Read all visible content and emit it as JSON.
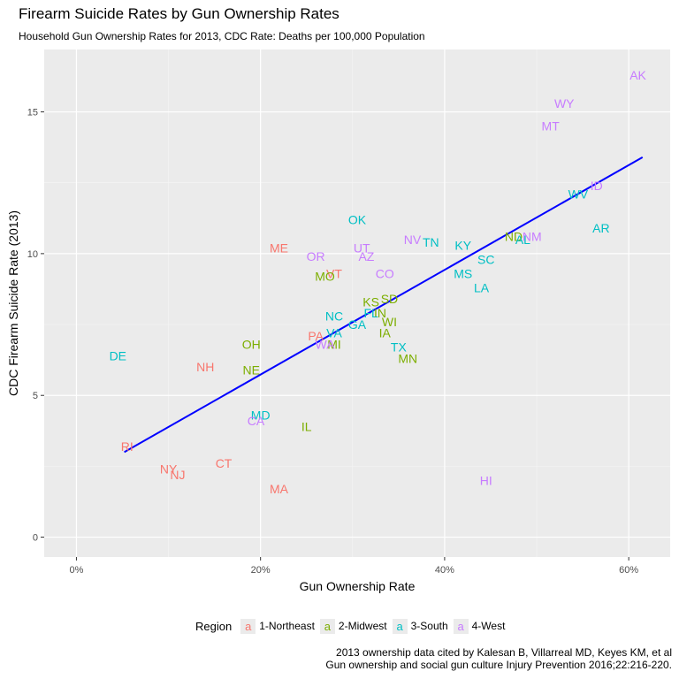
{
  "title": "Firearm Suicide Rates by Gun Ownership Rates",
  "subtitle": "Household Gun Ownership Rates for 2013, CDC Rate: Deaths per 100,000 Population",
  "caption": {
    "line1": "2013 ownership data cited by Kalesan B, Villarreal MD, Keyes KM, et al",
    "line2": "Gun ownership and social gun culture Injury Prevention 2016;22:216-220."
  },
  "legend": {
    "title": "Region",
    "key_glyph": "a",
    "items": [
      {
        "label": "1-Northeast",
        "color": "#F8766D"
      },
      {
        "label": "2-Midwest",
        "color": "#7CAE00"
      },
      {
        "label": "3-South",
        "color": "#00BFC4"
      },
      {
        "label": "4-West",
        "color": "#C77CFF"
      }
    ]
  },
  "chart_data": {
    "type": "scatter",
    "title": "Firearm Suicide Rates by Gun Ownership Rates",
    "subtitle": "Household Gun Ownership Rates for 2013, CDC Rate: Deaths per 100,000 Population",
    "xlabel": "Gun Ownership Rate",
    "ylabel": "CDC Firearm Suicide Rate (2013)",
    "xlim": [
      -0.035,
      0.645
    ],
    "ylim": [
      -0.7,
      17.2
    ],
    "x_ticks": [
      0,
      0.2,
      0.4,
      0.6
    ],
    "x_tick_labels": [
      "0%",
      "20%",
      "40%",
      "60%"
    ],
    "y_ticks": [
      0,
      5,
      10,
      15
    ],
    "y_tick_labels": [
      "0",
      "5",
      "10",
      "15"
    ],
    "grid": true,
    "legend_position": "bottom",
    "trend_line": {
      "color": "#0000FF",
      "x": [
        0.052,
        0.615
      ],
      "y": [
        3.0,
        13.4
      ]
    },
    "series": [
      {
        "name": "1-Northeast",
        "color": "#F8766D",
        "points": [
          {
            "label": "ME",
            "x": 0.22,
            "y": 10.2
          },
          {
            "label": "VT",
            "x": 0.28,
            "y": 9.3
          },
          {
            "label": "PA",
            "x": 0.26,
            "y": 7.1
          },
          {
            "label": "NH",
            "x": 0.14,
            "y": 6.0
          },
          {
            "label": "CT",
            "x": 0.16,
            "y": 2.6
          },
          {
            "label": "RI",
            "x": 0.055,
            "y": 3.2
          },
          {
            "label": "NY",
            "x": 0.1,
            "y": 2.4
          },
          {
            "label": "NJ",
            "x": 0.11,
            "y": 2.2
          },
          {
            "label": "MA",
            "x": 0.22,
            "y": 1.7
          }
        ]
      },
      {
        "name": "2-Midwest",
        "color": "#7CAE00",
        "points": [
          {
            "label": "MO",
            "x": 0.27,
            "y": 9.2
          },
          {
            "label": "KS",
            "x": 0.32,
            "y": 8.3
          },
          {
            "label": "SD",
            "x": 0.34,
            "y": 8.4
          },
          {
            "label": "IN",
            "x": 0.33,
            "y": 7.9
          },
          {
            "label": "WI",
            "x": 0.34,
            "y": 7.6
          },
          {
            "label": "IA",
            "x": 0.335,
            "y": 7.2
          },
          {
            "label": "OH",
            "x": 0.19,
            "y": 6.8
          },
          {
            "label": "MI",
            "x": 0.28,
            "y": 6.8
          },
          {
            "label": "NE",
            "x": 0.19,
            "y": 5.9
          },
          {
            "label": "MN",
            "x": 0.36,
            "y": 6.3
          },
          {
            "label": "IL",
            "x": 0.25,
            "y": 3.9
          },
          {
            "label": "ND",
            "x": 0.475,
            "y": 10.6
          }
        ]
      },
      {
        "name": "3-South",
        "color": "#00BFC4",
        "points": [
          {
            "label": "OK",
            "x": 0.305,
            "y": 11.2
          },
          {
            "label": "TN",
            "x": 0.385,
            "y": 10.4
          },
          {
            "label": "KY",
            "x": 0.42,
            "y": 10.3
          },
          {
            "label": "SC",
            "x": 0.445,
            "y": 9.8
          },
          {
            "label": "MS",
            "x": 0.42,
            "y": 9.3
          },
          {
            "label": "LA",
            "x": 0.44,
            "y": 8.8
          },
          {
            "label": "NC",
            "x": 0.28,
            "y": 7.8
          },
          {
            "label": "FL",
            "x": 0.32,
            "y": 7.9
          },
          {
            "label": "GA",
            "x": 0.305,
            "y": 7.5
          },
          {
            "label": "VA",
            "x": 0.28,
            "y": 7.2
          },
          {
            "label": "TX",
            "x": 0.35,
            "y": 6.7
          },
          {
            "label": "WV",
            "x": 0.545,
            "y": 12.1
          },
          {
            "label": "AR",
            "x": 0.57,
            "y": 10.9
          },
          {
            "label": "AL",
            "x": 0.485,
            "y": 10.5
          },
          {
            "label": "DE",
            "x": 0.045,
            "y": 6.4
          },
          {
            "label": "MD",
            "x": 0.2,
            "y": 4.3
          }
        ]
      },
      {
        "name": "4-West",
        "color": "#C77CFF",
        "points": [
          {
            "label": "AK",
            "x": 0.61,
            "y": 16.3
          },
          {
            "label": "WY",
            "x": 0.53,
            "y": 15.3
          },
          {
            "label": "MT",
            "x": 0.515,
            "y": 14.5
          },
          {
            "label": "ID",
            "x": 0.565,
            "y": 12.4
          },
          {
            "label": "NM",
            "x": 0.495,
            "y": 10.6
          },
          {
            "label": "NV",
            "x": 0.365,
            "y": 10.5
          },
          {
            "label": "UT",
            "x": 0.31,
            "y": 10.2
          },
          {
            "label": "AZ",
            "x": 0.315,
            "y": 9.9
          },
          {
            "label": "OR",
            "x": 0.26,
            "y": 9.9
          },
          {
            "label": "CO",
            "x": 0.335,
            "y": 9.3
          },
          {
            "label": "WA",
            "x": 0.27,
            "y": 6.8
          },
          {
            "label": "CA",
            "x": 0.195,
            "y": 4.1
          },
          {
            "label": "HI",
            "x": 0.445,
            "y": 2.0
          }
        ]
      }
    ]
  }
}
